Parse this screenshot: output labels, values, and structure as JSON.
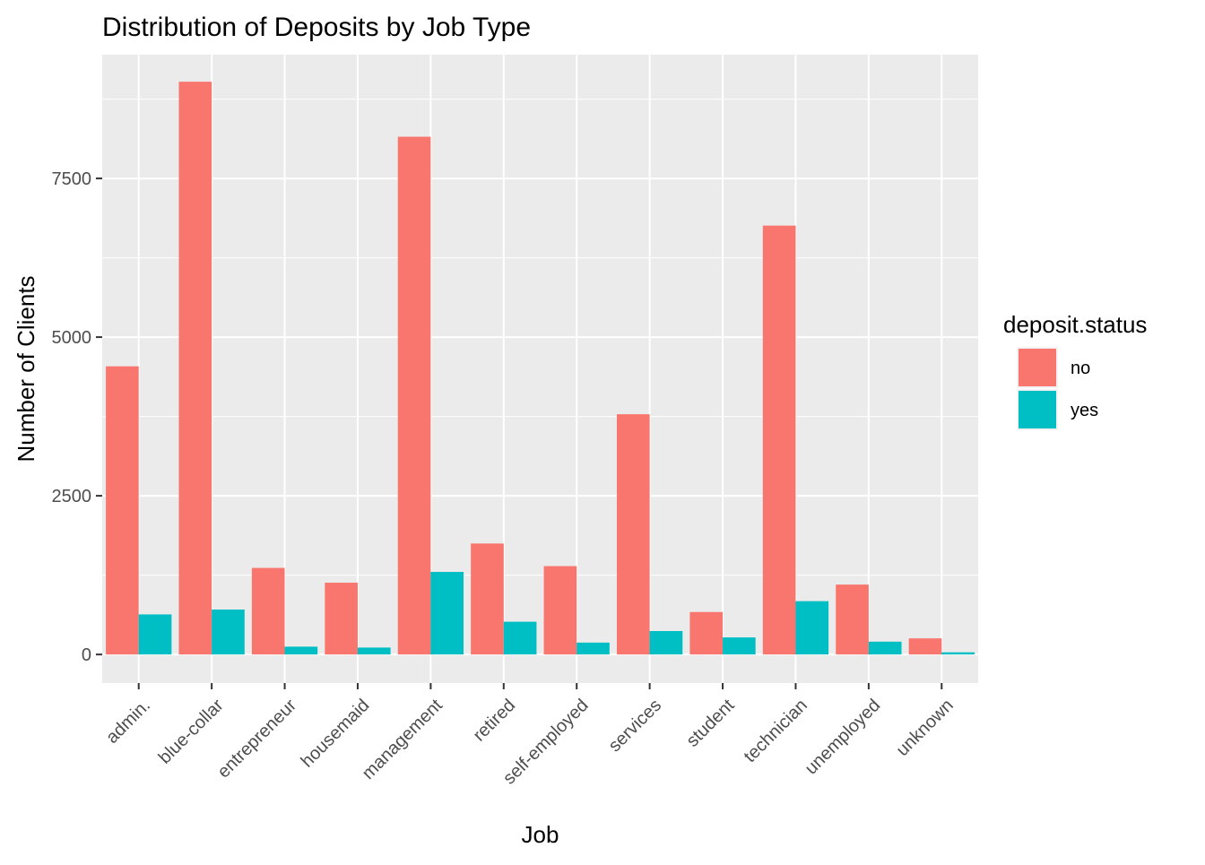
{
  "chart_data": {
    "type": "bar",
    "title": "Distribution of Deposits by Job Type",
    "xlabel": "Job",
    "ylabel": "Number of Clients",
    "categories": [
      "admin.",
      "blue-collar",
      "entrepreneur",
      "housemaid",
      "management",
      "retired",
      "self-employed",
      "services",
      "student",
      "technician",
      "unemployed",
      "unknown"
    ],
    "series": [
      {
        "name": "no",
        "color": "#F8766D",
        "values": [
          4540,
          9024,
          1364,
          1131,
          8157,
          1748,
          1392,
          3785,
          669,
          6757,
          1101,
          254
        ]
      },
      {
        "name": "yes",
        "color": "#00BFC4",
        "values": [
          631,
          708,
          123,
          109,
          1301,
          516,
          187,
          369,
          269,
          840,
          202,
          34
        ]
      }
    ],
    "ylim": [
      -450,
      9450
    ],
    "yticks": [
      0,
      2500,
      5000,
      7500
    ],
    "legend": {
      "title": "deposit.status",
      "position": "right"
    },
    "grid": true,
    "panel_background": "#EBEBEB"
  }
}
